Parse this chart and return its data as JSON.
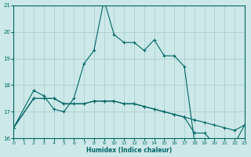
{
  "xlabel": "Humidex (Indice chaleur)",
  "xlim": [
    0,
    23
  ],
  "ylim": [
    16,
    21
  ],
  "yticks": [
    16,
    17,
    18,
    19,
    20,
    21
  ],
  "xticks": [
    0,
    1,
    2,
    3,
    4,
    5,
    6,
    7,
    8,
    9,
    10,
    11,
    12,
    13,
    14,
    15,
    16,
    17,
    18,
    19,
    20,
    21,
    22,
    23
  ],
  "bg_color": "#cce8e8",
  "line_color": "#006666",
  "grid_color": "#aacccc",
  "series": [
    {
      "x": [
        0,
        2,
        3,
        4,
        5,
        6,
        7,
        8,
        9,
        10,
        11,
        12,
        13,
        14,
        15,
        16,
        17,
        18
      ],
      "y": [
        16.4,
        17.8,
        17.6,
        17.1,
        17.0,
        17.5,
        18.8,
        19.3,
        21.2,
        19.9,
        19.6,
        19.6,
        19.3,
        19.7,
        19.1,
        19.1,
        18.7,
        15.9
      ]
    },
    {
      "x": [
        0,
        2,
        3,
        4,
        5,
        6,
        7,
        8,
        9,
        10,
        11,
        12,
        13,
        14,
        15,
        16,
        17,
        18,
        19,
        20,
        21,
        22,
        23
      ],
      "y": [
        16.4,
        17.5,
        17.5,
        17.5,
        17.3,
        17.3,
        17.3,
        17.4,
        17.4,
        17.4,
        17.3,
        17.3,
        17.2,
        17.1,
        17.0,
        16.9,
        16.8,
        16.7,
        16.6,
        16.5,
        16.4,
        16.3,
        16.5
      ]
    },
    {
      "x": [
        0,
        2,
        3,
        4,
        5,
        6,
        7,
        8,
        9,
        10,
        11,
        12,
        13,
        14,
        15,
        16,
        17,
        18,
        19,
        20,
        21,
        22,
        23
      ],
      "y": [
        16.4,
        17.5,
        17.5,
        17.5,
        17.3,
        17.3,
        17.3,
        17.4,
        17.4,
        17.4,
        17.3,
        17.3,
        17.2,
        17.1,
        17.0,
        16.9,
        16.8,
        16.2,
        16.2,
        15.8,
        15.8,
        15.8,
        16.5
      ]
    }
  ]
}
